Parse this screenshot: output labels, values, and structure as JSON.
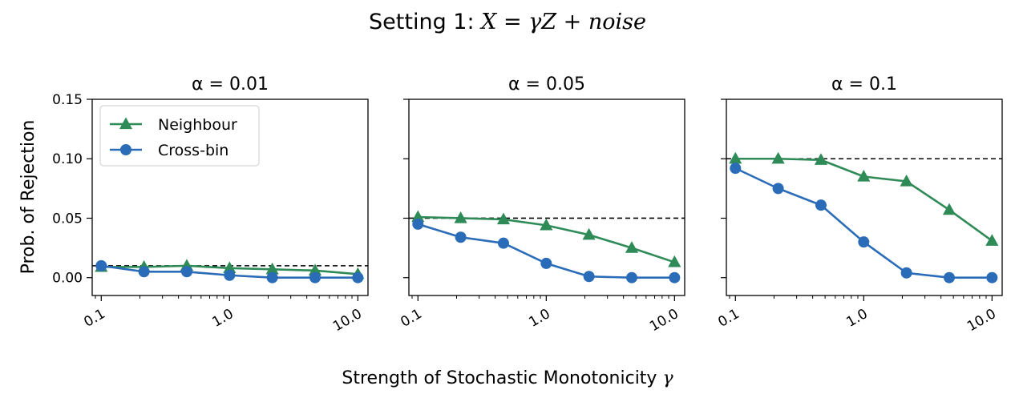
{
  "figure": {
    "suptitle_prefix": "Setting 1: ",
    "suptitle_math": "X = γZ + noise",
    "xlabel_text": "Strength of Stochastic Monotonicity ",
    "xlabel_math": "γ",
    "ylabel": "Prob. of Rejection"
  },
  "colors": {
    "neighbour": "#2e8b57",
    "crossbin": "#2b6cb8",
    "reference": "#000000"
  },
  "chart_data": [
    {
      "type": "line",
      "title": "α = 0.01",
      "xscale": "log",
      "xlim": [
        0.085,
        12
      ],
      "ylim": [
        -0.015,
        0.15
      ],
      "xticks": [
        0.1,
        1.0,
        10.0
      ],
      "xtick_labels": [
        "0.1",
        "1.0",
        "10.0"
      ],
      "yticks": [
        0.0,
        0.05,
        0.1,
        0.15
      ],
      "ytick_labels": [
        "0.00",
        "0.05",
        "0.10",
        "0.15"
      ],
      "reference_line": 0.01,
      "x": [
        0.1,
        0.2154,
        0.4642,
        1.0,
        2.154,
        4.642,
        10.0
      ],
      "series": [
        {
          "name": "Neighbour",
          "marker": "triangle",
          "values": [
            0.009,
            0.009,
            0.01,
            0.008,
            0.007,
            0.006,
            0.003
          ]
        },
        {
          "name": "Cross-bin",
          "marker": "circle",
          "values": [
            0.01,
            0.005,
            0.005,
            0.002,
            0.0,
            0.0,
            0.0
          ]
        }
      ],
      "legend": "upper-left"
    },
    {
      "type": "line",
      "title": "α = 0.05",
      "xscale": "log",
      "xlim": [
        0.085,
        12
      ],
      "ylim": [
        -0.015,
        0.15
      ],
      "xticks": [
        0.1,
        1.0,
        10.0
      ],
      "xtick_labels": [
        "0.1",
        "1.0",
        "10.0"
      ],
      "yticks": [
        0.0,
        0.05,
        0.1,
        0.15
      ],
      "reference_line": 0.05,
      "x": [
        0.1,
        0.2154,
        0.4642,
        1.0,
        2.154,
        4.642,
        10.0
      ],
      "series": [
        {
          "name": "Neighbour",
          "marker": "triangle",
          "values": [
            0.051,
            0.05,
            0.049,
            0.044,
            0.036,
            0.025,
            0.013
          ]
        },
        {
          "name": "Cross-bin",
          "marker": "circle",
          "values": [
            0.045,
            0.034,
            0.029,
            0.012,
            0.001,
            0.0,
            0.0
          ]
        }
      ]
    },
    {
      "type": "line",
      "title": "α = 0.1",
      "xscale": "log",
      "xlim": [
        0.085,
        12
      ],
      "ylim": [
        -0.015,
        0.15
      ],
      "xticks": [
        0.1,
        1.0,
        10.0
      ],
      "xtick_labels": [
        "0.1",
        "1.0",
        "10.0"
      ],
      "yticks": [
        0.0,
        0.05,
        0.1,
        0.15
      ],
      "reference_line": 0.1,
      "x": [
        0.1,
        0.2154,
        0.4642,
        1.0,
        2.154,
        4.642,
        10.0
      ],
      "series": [
        {
          "name": "Neighbour",
          "marker": "triangle",
          "values": [
            0.1,
            0.1,
            0.099,
            0.085,
            0.081,
            0.057,
            0.031
          ]
        },
        {
          "name": "Cross-bin",
          "marker": "circle",
          "values": [
            0.092,
            0.075,
            0.061,
            0.03,
            0.004,
            0.0,
            0.0
          ]
        }
      ]
    }
  ]
}
